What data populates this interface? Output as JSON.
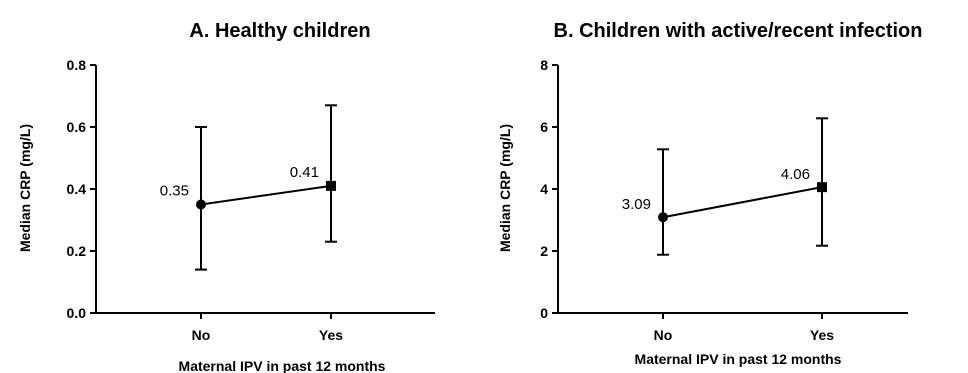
{
  "chart_data": [
    {
      "type": "line",
      "title": "A. Healthy children",
      "xlabel": "Maternal IPV in past 12 months",
      "ylabel": "Median CRP (mg/L)",
      "categories": [
        "No",
        "Yes"
      ],
      "ylim": [
        0,
        0.8
      ],
      "yticks": [
        "0.0",
        "0.2",
        "0.4",
        "0.6",
        "0.8"
      ],
      "values": [
        0.35,
        0.41
      ],
      "lower": [
        0.14,
        0.23
      ],
      "upper": [
        0.6,
        0.67
      ],
      "data_labels": [
        "0.35",
        "0.41"
      ],
      "markers": [
        "circle",
        "square"
      ],
      "grid": false
    },
    {
      "type": "line",
      "title": "B. Children with active/recent infection",
      "xlabel": "Maternal IPV in past 12 months",
      "ylabel": "Median CRP (mg/L)",
      "categories": [
        "No",
        "Yes"
      ],
      "ylim": [
        0,
        8
      ],
      "yticks": [
        "0",
        "2",
        "4",
        "6",
        "8"
      ],
      "values": [
        3.09,
        4.06
      ],
      "lower": [
        1.88,
        2.17
      ],
      "upper": [
        5.28,
        6.28
      ],
      "data_labels": [
        "3.09",
        "4.06"
      ],
      "markers": [
        "circle",
        "square"
      ],
      "grid": false
    }
  ]
}
